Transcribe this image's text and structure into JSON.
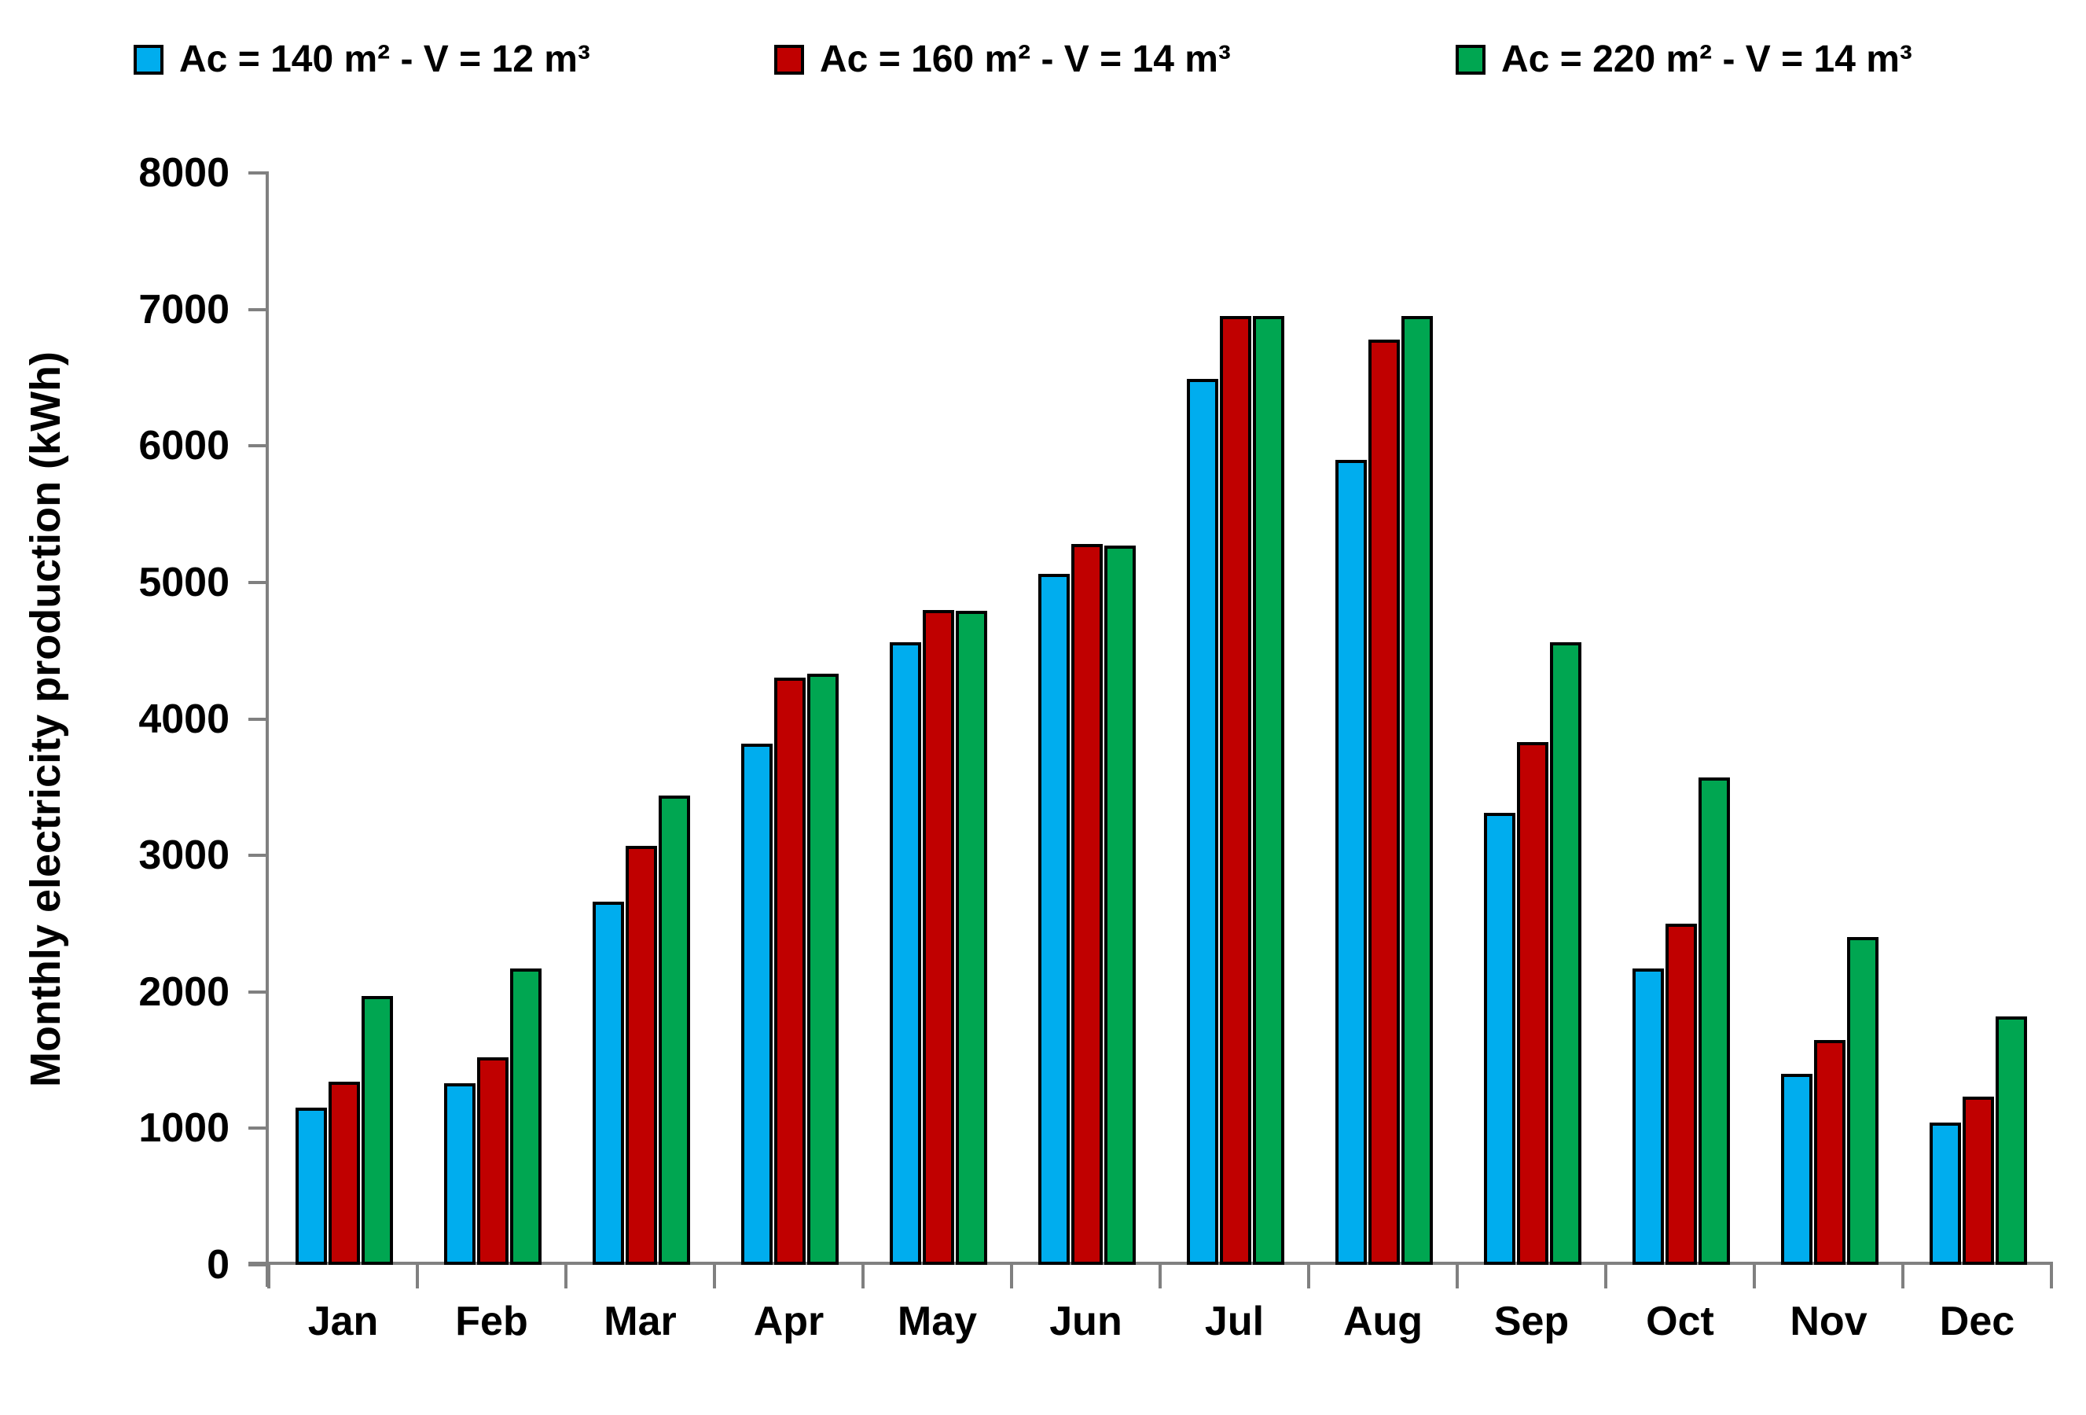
{
  "chart_data": {
    "type": "bar",
    "title": "",
    "xlabel": "",
    "ylabel": "Monthly electricity production (kWh)",
    "ylim": [
      0,
      8000
    ],
    "ytick_step": 1000,
    "ytick_labels": [
      "0",
      "1000",
      "2000",
      "3000",
      "4000",
      "5000",
      "6000",
      "7000",
      "8000"
    ],
    "grid": false,
    "legend_position": "top",
    "categories": [
      "Jan",
      "Feb",
      "Mar",
      "Apr",
      "May",
      "Jun",
      "Jul",
      "Aug",
      "Sep",
      "Oct",
      "Nov",
      "Dec"
    ],
    "series": [
      {
        "name": "Ac = 140 m² - V = 12 m³",
        "color": "#00ADEE",
        "values": [
          1150,
          1330,
          2660,
          3820,
          4560,
          5060,
          6490,
          5900,
          3310,
          2170,
          1400,
          1040
        ]
      },
      {
        "name": "Ac = 160 m² - V = 14 m³",
        "color": "#C00000",
        "values": [
          1340,
          1520,
          3070,
          4300,
          4800,
          5280,
          6950,
          6780,
          3830,
          2500,
          1650,
          1230
        ]
      },
      {
        "name": "Ac = 220 m² - V = 14 m³",
        "color": "#00A651",
        "values": [
          1970,
          2170,
          3440,
          4330,
          4790,
          5270,
          6950,
          6950,
          4560,
          3570,
          2400,
          1820
        ]
      }
    ]
  },
  "style": {
    "axis_color": "#808080",
    "bar_border_color": "#000000",
    "text_color": "#000000",
    "background": "#FFFFFF",
    "legend_x_positions": [
      170,
      985,
      1852
    ]
  }
}
